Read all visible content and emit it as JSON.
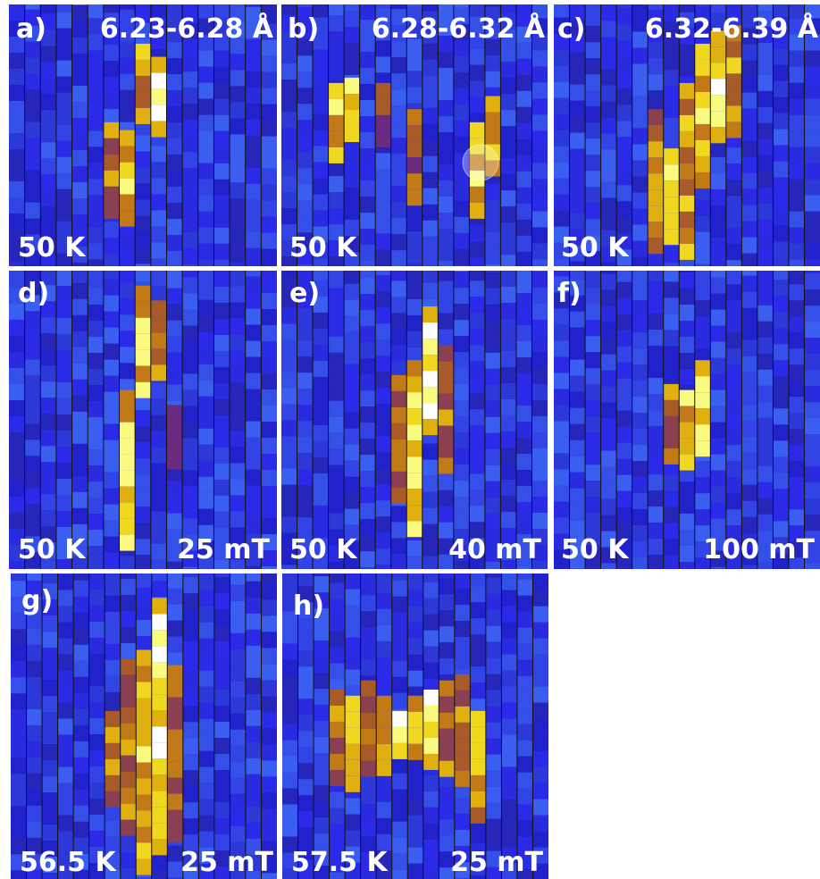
{
  "panels": [
    {
      "label": "a)",
      "range": "6.23-6.28 Å",
      "temperature": "50 K"
    },
    {
      "label": "b)",
      "range": "6.28-6.32 Å",
      "temperature": "50 K"
    },
    {
      "label": "c)",
      "range": "6.32-6.39 Å",
      "temperature": "50 K"
    },
    {
      "label": "d)",
      "temperature": "50 K",
      "field": "25 mT"
    },
    {
      "label": "e)",
      "temperature": "50 K",
      "field": "40 mT"
    },
    {
      "label": "f)",
      "temperature": "50 K",
      "field": "100 mT"
    },
    {
      "label": "g)",
      "temperature": "56.5 K",
      "field": "25 mT"
    },
    {
      "label": "h)",
      "temperature": "57.5 K",
      "field": "25 mT"
    }
  ]
}
